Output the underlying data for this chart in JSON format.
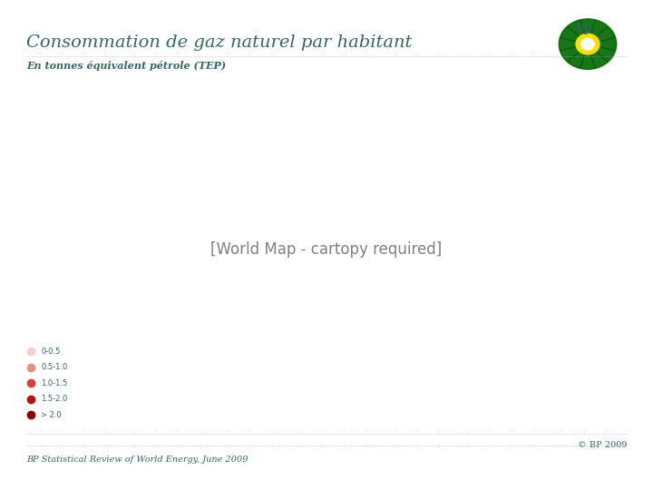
{
  "title": "Consommation de gaz naturel par habitant",
  "subtitle": "En tonnes équivalent pétrole (TEP)",
  "source": "BP Statistical Review of World Energy, June 2009",
  "copyright": "© BP 2009",
  "legend_labels": [
    "0-0.5",
    "0.5-1.0",
    "1.0-1.5",
    "1.5-2.0",
    "> 2.0"
  ],
  "legend_colors": [
    "#f5cfc8",
    "#e89080",
    "#d44030",
    "#bb1010",
    "#8b0000"
  ],
  "title_color": "#336666",
  "subtitle_color": "#336666",
  "source_color": "#336666",
  "background_color": "#ffffff",
  "map_ocean_color": "#ffffff",
  "map_land_default": "#e8e8e8",
  "title_fontsize": 14,
  "subtitle_fontsize": 8,
  "source_fontsize": 7,
  "bp_text_color": "#336666",
  "bp_logo_color": "#006600"
}
